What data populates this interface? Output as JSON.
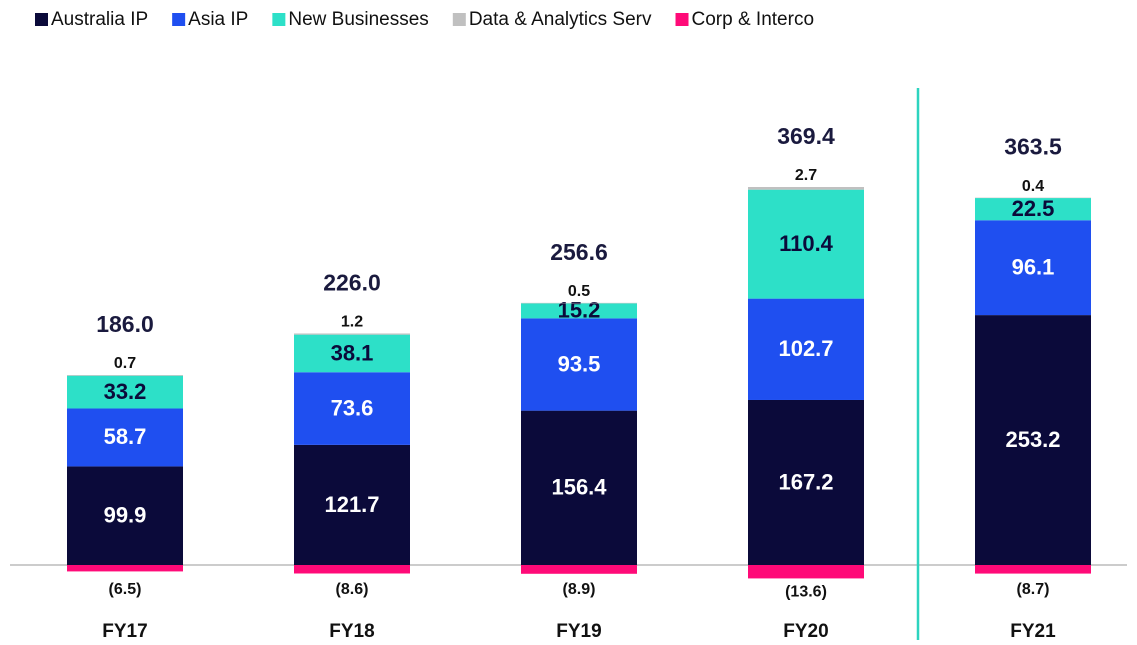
{
  "chart_data": {
    "type": "stacked_bar",
    "categories": [
      "FY17",
      "FY18",
      "FY19",
      "FY20",
      "FY21"
    ],
    "series": [
      {
        "name": "Australia IP",
        "color": "#0b0a3a",
        "values": [
          99.9,
          121.7,
          156.4,
          167.2,
          253.2
        ]
      },
      {
        "name": "Asia IP",
        "color": "#1f4ff0",
        "values": [
          58.7,
          73.6,
          93.5,
          102.7,
          96.1
        ]
      },
      {
        "name": "New Businesses",
        "color": "#2de0c8",
        "values": [
          33.2,
          38.1,
          15.2,
          110.4,
          22.5
        ]
      },
      {
        "name": "Data & Analytics Serv",
        "color": "#c0c0c0",
        "values": [
          0.7,
          1.2,
          0.5,
          2.7,
          0.4
        ]
      },
      {
        "name": "Corp & Interco",
        "color": "#ff0a78",
        "values": [
          -6.5,
          -8.6,
          -8.9,
          -13.6,
          -8.7
        ],
        "value_labels": [
          "(6.5)",
          "(8.6)",
          "(8.9)",
          "(13.6)",
          "(8.7)"
        ]
      }
    ],
    "totals": {
      "values": [
        186.0,
        226.0,
        256.6,
        369.4,
        363.5
      ],
      "value_labels": [
        "186.0",
        "226.0",
        "256.6",
        "369.4",
        "363.5"
      ]
    }
  }
}
